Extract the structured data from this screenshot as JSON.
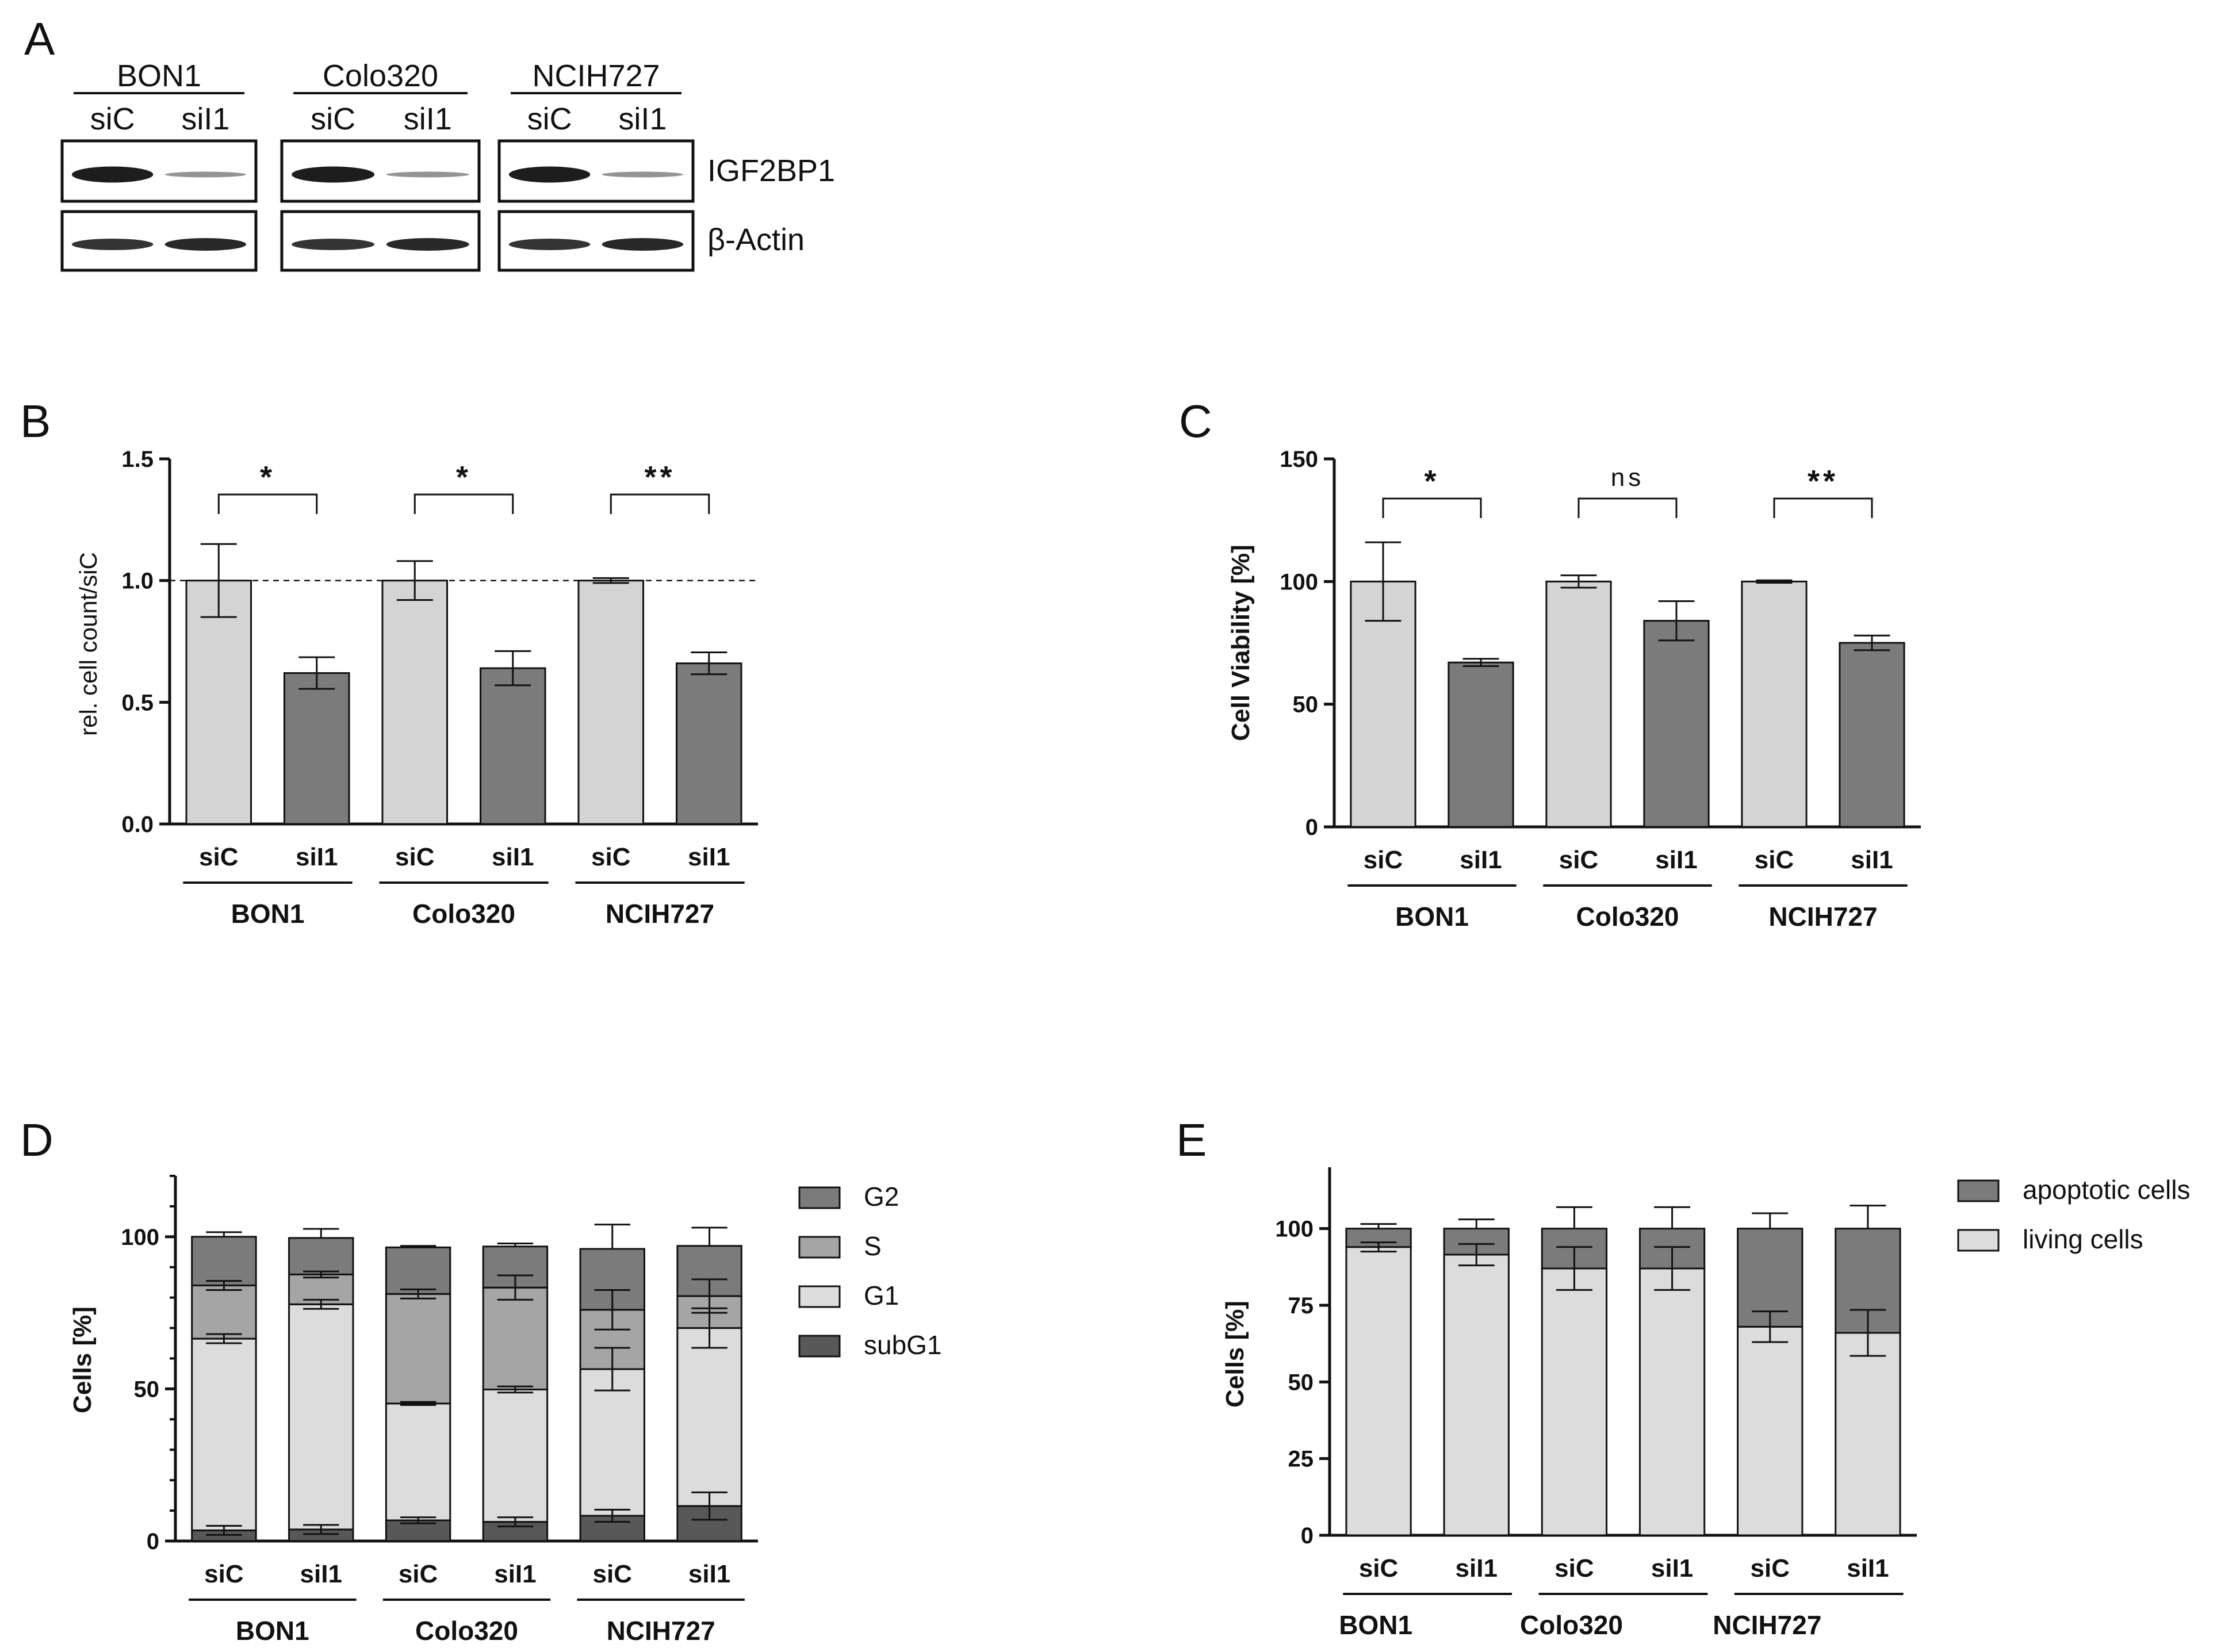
{
  "panel_labels": [
    "A",
    "B",
    "C",
    "D",
    "E"
  ],
  "blot": {
    "groups": [
      {
        "name": "BON1",
        "lanes": [
          "siC",
          "siI1"
        ]
      },
      {
        "name": "Colo320",
        "lanes": [
          "siC",
          "siI1"
        ]
      },
      {
        "name": "NCIH727",
        "lanes": [
          "siC",
          "siI1"
        ]
      }
    ],
    "rows": [
      "IGF2BP1",
      "β-Actin"
    ]
  },
  "chart_data": [
    {
      "panel": "B",
      "type": "bar",
      "categories": [
        "siC",
        "siI1",
        "siC",
        "siI1",
        "siC",
        "siI1"
      ],
      "groups": [
        "BON1",
        "Colo320",
        "NCIH727"
      ],
      "values": [
        1.0,
        0.62,
        1.0,
        0.64,
        1.0,
        0.66
      ],
      "errors": [
        0.15,
        0.065,
        0.08,
        0.07,
        0.01,
        0.045
      ],
      "colors": [
        "#d4d4d4",
        "#7b7b7b",
        "#d4d4d4",
        "#7b7b7b",
        "#d4d4d4",
        "#7b7b7b"
      ],
      "ylabel": "rel. cell count/siC",
      "ylim": [
        0,
        1.5
      ],
      "yticks": [
        "0.0",
        "0.5",
        "1.0",
        "1.5"
      ],
      "reference_line": 1.0,
      "significance": [
        "*",
        "*",
        "**"
      ]
    },
    {
      "panel": "C",
      "type": "bar",
      "categories": [
        "siC",
        "siI1",
        "siC",
        "siI1",
        "siC",
        "siI1"
      ],
      "groups": [
        "BON1",
        "Colo320",
        "NCIH727"
      ],
      "values": [
        100,
        67,
        100,
        84,
        100,
        75
      ],
      "errors": [
        16,
        1.5,
        2.5,
        8,
        0.5,
        3
      ],
      "colors": [
        "#d4d4d4",
        "#7b7b7b",
        "#d4d4d4",
        "#7b7b7b",
        "#d4d4d4",
        "#7b7b7b"
      ],
      "ylabel": "Cell Viability [%]",
      "ylim": [
        0,
        150
      ],
      "yticks": [
        "0",
        "50",
        "100",
        "150"
      ],
      "significance": [
        "*",
        "ns",
        "**"
      ]
    },
    {
      "panel": "D",
      "type": "bar",
      "stacked": true,
      "categories": [
        "siC",
        "siI1",
        "siC",
        "siI1",
        "siC",
        "siI1"
      ],
      "groups": [
        "BON1",
        "Colo320",
        "NCIH727"
      ],
      "ylabel": "Cells [%]",
      "ylim": [
        0,
        120
      ],
      "yticks": [
        "0",
        "50",
        "100"
      ],
      "series": [
        {
          "name": "subG1",
          "color": "#585858",
          "values": [
            3.5,
            3.8,
            6.8,
            6.3,
            8.3,
            11.5
          ],
          "errors": [
            1.5,
            1.5,
            1,
            1.5,
            2,
            4.5
          ]
        },
        {
          "name": "G1",
          "color": "#dcdcdc",
          "values": [
            63,
            74,
            38.4,
            43.5,
            48.2,
            58.5
          ],
          "errors": [
            1.5,
            1.5,
            0.5,
            1,
            7,
            6.5
          ]
        },
        {
          "name": "S",
          "color": "#a5a5a5",
          "values": [
            17.5,
            9.8,
            36,
            33.5,
            19.5,
            10.5
          ],
          "errors": [
            1.5,
            1,
            1.5,
            4,
            6.5,
            5.5
          ]
        },
        {
          "name": "G2",
          "color": "#7b7b7b",
          "values": [
            16,
            12,
            15.3,
            13.5,
            20,
            16.5
          ],
          "errors": [
            1.5,
            3,
            0.5,
            1,
            8,
            6
          ]
        }
      ],
      "legend": [
        "G2",
        "S",
        "G1",
        "subG1"
      ],
      "legend_position": "right"
    },
    {
      "panel": "E",
      "type": "bar",
      "stacked": true,
      "categories": [
        "siC",
        "siI1",
        "siC",
        "siI1",
        "siC",
        "siI1"
      ],
      "groups": [
        "BON1",
        "Colo320",
        "NCIH727"
      ],
      "ylabel": "Cells [%]",
      "ylim": [
        0,
        120
      ],
      "yticks": [
        "0",
        "25",
        "50",
        "75",
        "100"
      ],
      "series": [
        {
          "name": "living cells",
          "color": "#dcdcdc",
          "values": [
            94,
            91.5,
            87,
            87,
            68,
            66
          ],
          "errors": [
            1.5,
            3.5,
            7,
            7,
            5,
            7.5
          ]
        },
        {
          "name": "apoptotic cells",
          "color": "#7b7b7b",
          "values": [
            6,
            8.5,
            13,
            13,
            32,
            34
          ],
          "errors": [
            1.5,
            3,
            7,
            7,
            5,
            7.5
          ]
        }
      ],
      "legend": [
        "apoptotic cells",
        "living cells"
      ],
      "legend_position": "right"
    }
  ]
}
